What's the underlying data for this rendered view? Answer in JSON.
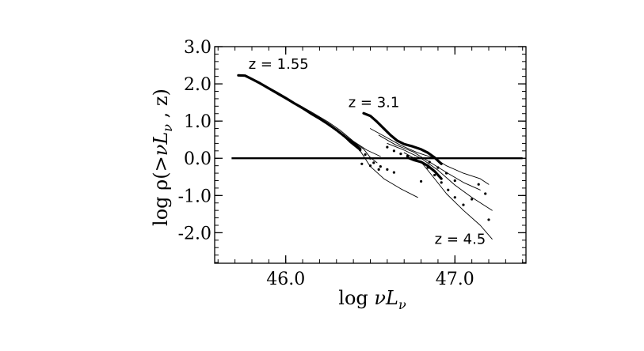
{
  "chart_data": {
    "type": "line",
    "xlabel_prefix": "log ",
    "xlabel_var": "νL",
    "xlabel_sub": "ν",
    "ylabel_prefix": "log ρ(>",
    "ylabel_var": "νL",
    "ylabel_sub": "ν",
    "ylabel_suffix": " , z)",
    "xlim": [
      45.58,
      47.42
    ],
    "ylim": [
      -2.82,
      3.0
    ],
    "xticks": [
      {
        "value": 46.0,
        "label": "46.0"
      },
      {
        "value": 47.0,
        "label": "47.0"
      }
    ],
    "yticks": [
      {
        "value": 3.0,
        "label": "3.0"
      },
      {
        "value": 2.0,
        "label": "2.0"
      },
      {
        "value": 1.0,
        "label": "1.0"
      },
      {
        "value": 0.0,
        "label": "0.0"
      },
      {
        "value": -1.0,
        "label": "-1.0"
      },
      {
        "value": -2.0,
        "label": "-2.0"
      }
    ],
    "reference_line": {
      "y": 0.0,
      "x": [
        45.68,
        47.4
      ]
    },
    "annotations": [
      {
        "text": "z = 1.55",
        "x": 45.78,
        "y": 2.4
      },
      {
        "text": "z = 3.1",
        "x": 46.37,
        "y": 1.38
      },
      {
        "text": "z = 4.5",
        "x": 46.88,
        "y": -2.3
      }
    ],
    "series": [
      {
        "style": "thick",
        "x": [
          45.72,
          45.76,
          45.8,
          45.85,
          45.9,
          45.95,
          46.0,
          46.05,
          46.1,
          46.15,
          46.2,
          46.25,
          46.3,
          46.35,
          46.4,
          46.44
        ],
        "y": [
          2.23,
          2.22,
          2.13,
          2.01,
          1.88,
          1.75,
          1.62,
          1.48,
          1.35,
          1.2,
          1.07,
          0.92,
          0.76,
          0.58,
          0.4,
          0.25
        ]
      },
      {
        "style": "thin",
        "x": [
          45.85,
          45.95,
          46.05,
          46.15,
          46.25,
          46.32,
          46.38,
          46.44,
          46.5,
          46.58,
          46.68,
          46.78
        ],
        "y": [
          2.0,
          1.73,
          1.46,
          1.18,
          0.9,
          0.68,
          0.42,
          0.2,
          -0.22,
          -0.55,
          -0.82,
          -1.05
        ]
      },
      {
        "style": "thin",
        "x": [
          45.85,
          45.95,
          46.05,
          46.15,
          46.25,
          46.32,
          46.4,
          46.48,
          46.56
        ],
        "y": [
          2.02,
          1.76,
          1.5,
          1.25,
          0.98,
          0.76,
          0.46,
          0.22,
          0.05
        ]
      },
      {
        "style": "thin",
        "x": [
          45.85,
          45.95,
          46.05,
          46.15,
          46.25,
          46.32,
          46.4,
          46.46,
          46.5,
          46.54
        ],
        "y": [
          1.99,
          1.72,
          1.46,
          1.19,
          0.92,
          0.7,
          0.44,
          0.25,
          0.02,
          -0.12
        ]
      },
      {
        "style": "dotted",
        "x": [
          46.26,
          46.3,
          46.34,
          46.38,
          46.41,
          46.44,
          46.47,
          46.5,
          46.52,
          46.56,
          46.6,
          46.64
        ],
        "y": [
          0.89,
          0.76,
          0.62,
          0.48,
          0.36,
          0.22,
          0.1,
          0.0,
          -0.12,
          -0.22,
          -0.3,
          -0.38
        ]
      },
      {
        "style": "thick",
        "x": [
          46.46,
          46.5,
          46.54,
          46.58,
          46.62,
          46.66,
          46.7,
          46.75,
          46.8,
          46.84,
          46.88,
          46.92
        ],
        "y": [
          1.21,
          1.14,
          0.98,
          0.8,
          0.62,
          0.47,
          0.38,
          0.32,
          0.24,
          0.15,
          0.02,
          -0.15
        ]
      },
      {
        "style": "thin",
        "x": [
          46.5,
          46.58,
          46.68,
          46.78,
          46.88,
          46.95,
          47.05,
          47.15,
          47.2
        ],
        "y": [
          0.8,
          0.6,
          0.35,
          0.15,
          0.0,
          -0.2,
          -0.4,
          -0.55,
          -0.7
        ]
      },
      {
        "style": "thin",
        "x": [
          46.55,
          46.65,
          46.75,
          46.85,
          46.95,
          47.05,
          47.15
        ],
        "y": [
          0.62,
          0.36,
          0.18,
          -0.1,
          -0.38,
          -0.65,
          -0.85
        ]
      },
      {
        "style": "thin",
        "x": [
          46.6,
          46.7,
          46.8,
          46.9,
          47.0,
          47.1,
          47.22
        ],
        "y": [
          0.4,
          0.22,
          0.0,
          -0.32,
          -0.72,
          -1.05,
          -1.4
        ]
      },
      {
        "style": "thin",
        "x": [
          46.7,
          46.8,
          46.88,
          46.95,
          47.05,
          47.15,
          47.22
        ],
        "y": [
          0.15,
          -0.1,
          -0.55,
          -0.95,
          -1.4,
          -1.8,
          -2.17
        ]
      },
      {
        "style": "thick",
        "x": [
          46.72,
          46.76,
          46.8,
          46.84,
          46.88,
          46.92
        ],
        "y": [
          0.02,
          -0.05,
          -0.1,
          -0.2,
          -0.35,
          -0.55
        ]
      },
      {
        "style": "dotted",
        "x": [
          46.6,
          46.64,
          46.68,
          46.72,
          46.76,
          46.8,
          46.84,
          46.88,
          46.92,
          46.96,
          47.0,
          47.05,
          47.1,
          47.14,
          47.18,
          47.2
        ],
        "y": [
          0.3,
          0.2,
          0.12,
          0.06,
          0.0,
          -0.1,
          -0.25,
          -0.45,
          -0.65,
          -0.85,
          -1.05,
          -1.25,
          -1.1,
          -0.7,
          -0.95,
          -1.65
        ]
      },
      {
        "style": "dotted",
        "x": [
          46.45,
          46.5,
          46.55,
          46.8,
          46.85,
          46.9,
          46.95,
          47.0
        ],
        "y": [
          -0.15,
          -0.2,
          -0.3,
          -0.62,
          -0.1,
          -0.25,
          -0.4,
          -0.6
        ]
      }
    ]
  }
}
